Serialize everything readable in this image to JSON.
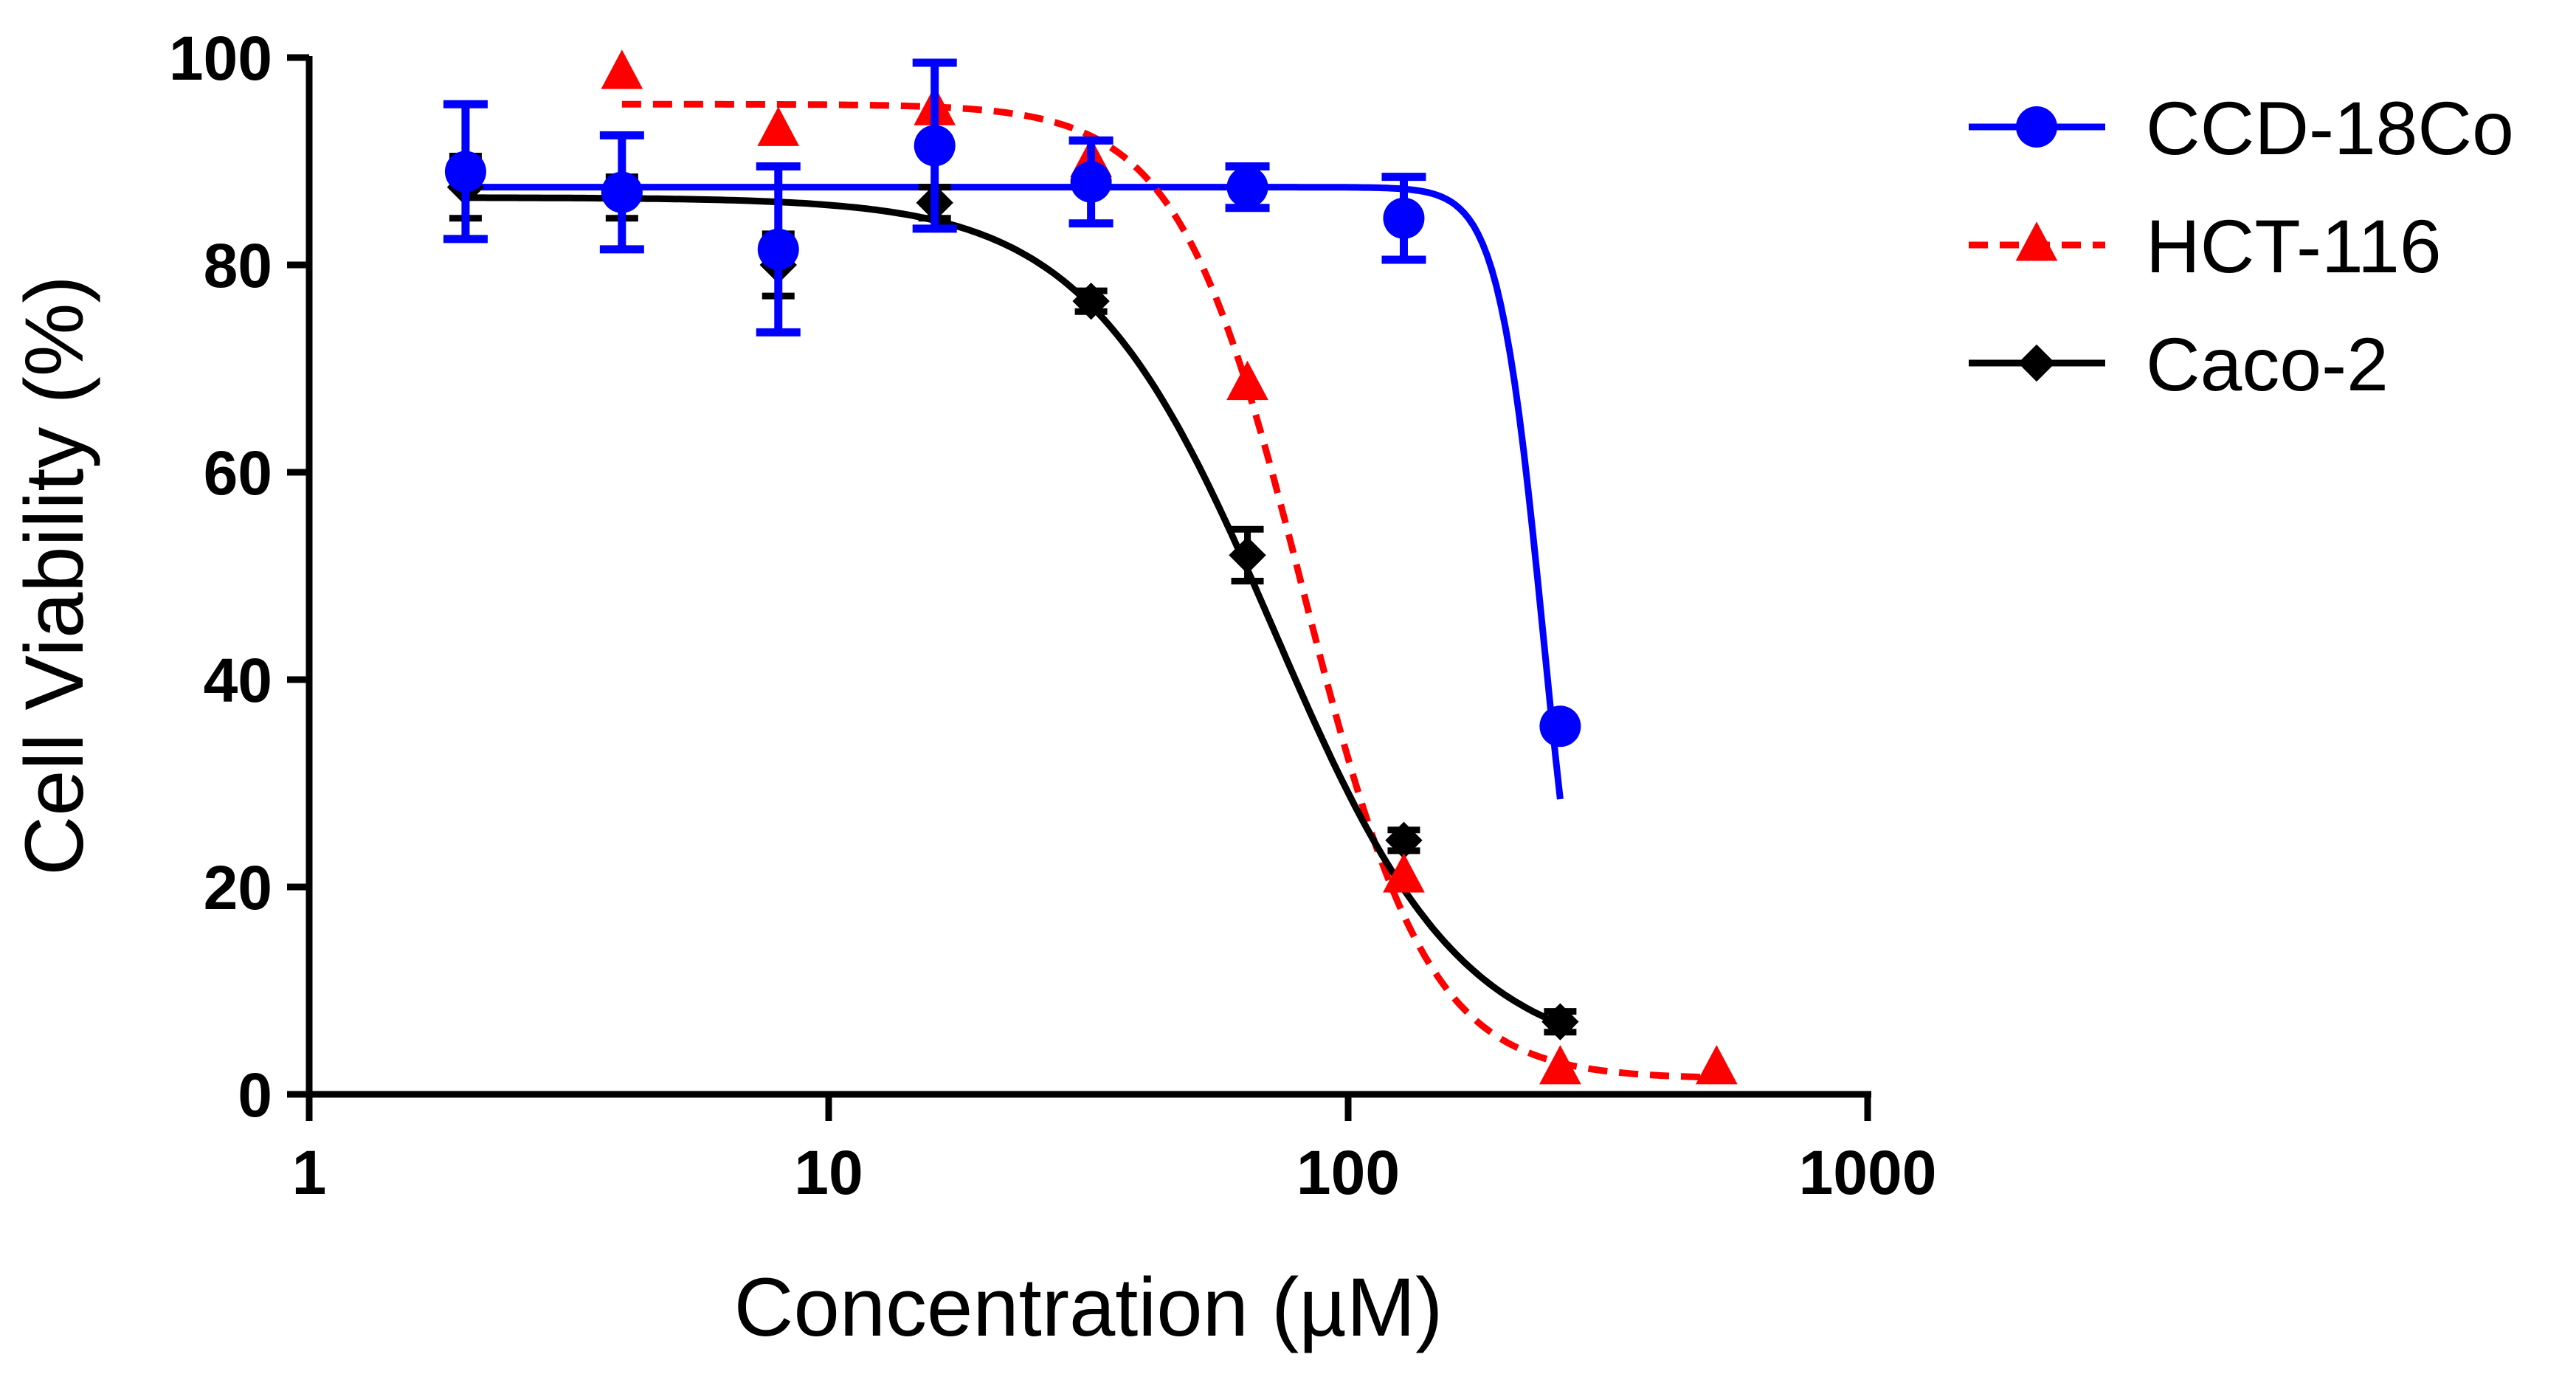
{
  "chart_data": {
    "type": "scatter",
    "xlabel": "Concentration (µM)",
    "ylabel": "Cell Viability (%)",
    "xscale": "log",
    "xlim": [
      1,
      1000
    ],
    "ylim": [
      0,
      100
    ],
    "xticks": [
      1,
      10,
      100,
      1000
    ],
    "xtick_labels": [
      "1",
      "10",
      "100",
      "1000"
    ],
    "yticks": [
      0,
      20,
      40,
      60,
      80,
      100
    ],
    "ytick_labels": [
      "0",
      "20",
      "40",
      "60",
      "80",
      "100"
    ],
    "grid": false,
    "legend_position": "right",
    "series": [
      {
        "name": "CCD-18Co",
        "color": "#0000ff",
        "marker": "circle",
        "line": "solid",
        "x": [
          2,
          4,
          8,
          16,
          32,
          64,
          128,
          256
        ],
        "y": [
          89,
          87,
          81.5,
          91.5,
          88,
          87.5,
          84.5,
          35.5
        ],
        "error": [
          6.5,
          5.5,
          8,
          8,
          4,
          2,
          4,
          0
        ],
        "fit": {
          "top": 87.5,
          "bottom": 0,
          "ec50": 238,
          "hill": 10,
          "x_from": 2,
          "x_to": 256
        }
      },
      {
        "name": "HCT-116",
        "color": "#ff0000",
        "marker": "triangle",
        "line": "dashed",
        "x": [
          4,
          8,
          16,
          32,
          64,
          128,
          256,
          512
        ],
        "y": [
          98.5,
          93,
          95,
          90,
          68.5,
          21,
          2.5,
          2.5
        ],
        "error": [
          0,
          0,
          0,
          0,
          0,
          0,
          0,
          0
        ],
        "fit": {
          "top": 95.5,
          "bottom": 1.5,
          "ec50": 82,
          "hill": 3.6,
          "x_from": 4,
          "x_to": 512
        }
      },
      {
        "name": "Caco-2",
        "color": "#000000",
        "marker": "diamond",
        "line": "solid",
        "x": [
          2,
          4,
          8,
          16,
          32,
          64,
          128,
          256
        ],
        "y": [
          87.5,
          86.5,
          80,
          86,
          76.5,
          52,
          24.5,
          7
        ],
        "error": [
          3,
          2,
          3,
          1.5,
          1,
          2.5,
          1,
          1
        ],
        "fit": {
          "top": 86.5,
          "bottom": 3,
          "ec50": 72,
          "hill": 2.4,
          "x_from": 2,
          "x_to": 256
        }
      }
    ]
  }
}
